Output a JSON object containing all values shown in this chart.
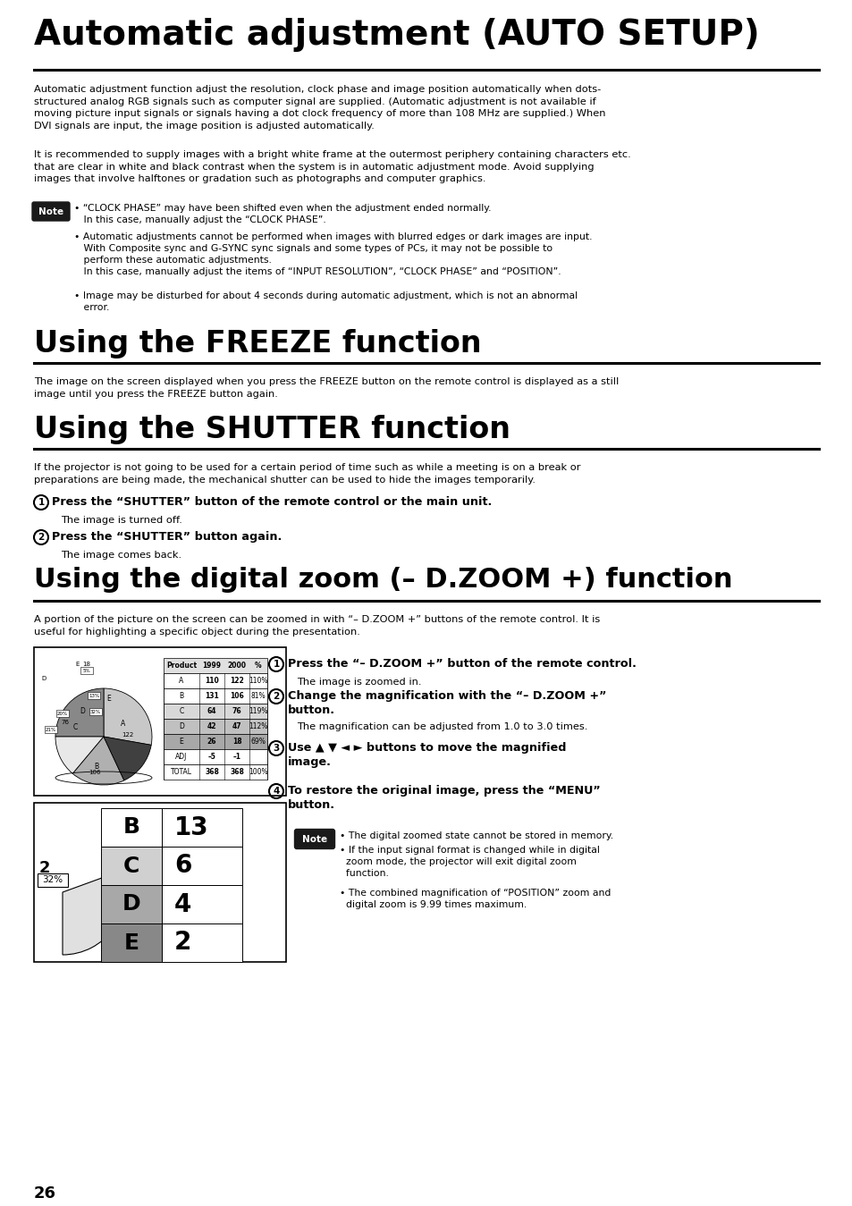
{
  "page_bg": "#ffffff",
  "title1": "Automatic adjustment (AUTO SETUP)",
  "title2": "Using the FREEZE function",
  "title3": "Using the SHUTTER function",
  "title4": "Using the digital zoom (– D.ZOOM +) function",
  "auto_body1": "Automatic adjustment function adjust the resolution, clock phase and image position automatically when dots-\nstructured analog RGB signals such as computer signal are supplied. (Automatic adjustment is not available if\nmoving picture input signals or signals having a dot clock frequency of more than 108 MHz are supplied.) When\nDVI signals are input, the image position is adjusted automatically.",
  "auto_body2": "It is recommended to supply images with a bright white frame at the outermost periphery containing characters etc.\nthat are clear in white and black contrast when the system is in automatic adjustment mode. Avoid supplying\nimages that involve halftones or gradation such as photographs and computer graphics.",
  "note_label": "Note",
  "auto_note1": "• “CLOCK PHASE” may have been shifted even when the adjustment ended normally.\n   In this case, manually adjust the “CLOCK PHASE”.",
  "auto_note2": "• Automatic adjustments cannot be performed when images with blurred edges or dark images are input.\n   With Composite sync and G-SYNC sync signals and some types of PCs, it may not be possible to\n   perform these automatic adjustments.\n   In this case, manually adjust the items of “INPUT RESOLUTION”, “CLOCK PHASE” and “POSITION”.",
  "auto_note3": "• Image may be disturbed for about 4 seconds during automatic adjustment, which is not an abnormal\n   error.",
  "freeze_body": "The image on the screen displayed when you press the FREEZE button on the remote control is displayed as a still\nimage until you press the FREEZE button again.",
  "shutter_body": "If the projector is not going to be used for a certain period of time such as while a meeting is on a break or\npreparations are being made, the mechanical shutter can be used to hide the images temporarily.",
  "shutter_step1_bold": "Press the “SHUTTER” button of the remote control or the main unit.",
  "shutter_step1_sub": "The image is turned off.",
  "shutter_step2_bold": "Press the “SHUTTER” button again.",
  "shutter_step2_sub": "The image comes back.",
  "dzoom_body": "A portion of the picture on the screen can be zoomed in with “– D.ZOOM +” buttons of the remote control. It is\nuseful for highlighting a specific object during the presentation.",
  "dzoom_step1_bold": "Press the “– D.ZOOM +” button of the remote control.",
  "dzoom_step1_sub": "The image is zoomed in.",
  "dzoom_step2_bold": "Change the magnification with the “– D.ZOOM +”\nbutton.",
  "dzoom_step2_sub": "The magnification can be adjusted from 1.0 to 3.0 times.",
  "dzoom_step3_bold": "Use ▲ ▼ ◄ ► buttons to move the magnified\nimage.",
  "dzoom_step4_bold": "To restore the original image, press the “MENU”\nbutton.",
  "dzoom_note1": "• The digital zoomed state cannot be stored in memory.",
  "dzoom_note2": "• If the input signal format is changed while in digital\n  zoom mode, the projector will exit digital zoom\n  function.",
  "dzoom_note3": "• The combined magnification of “POSITION” zoom and\n  digital zoom is 9.99 times maximum.",
  "page_num": "26",
  "note_bg": "#1a1a1a",
  "note_text_color": "#ffffff"
}
